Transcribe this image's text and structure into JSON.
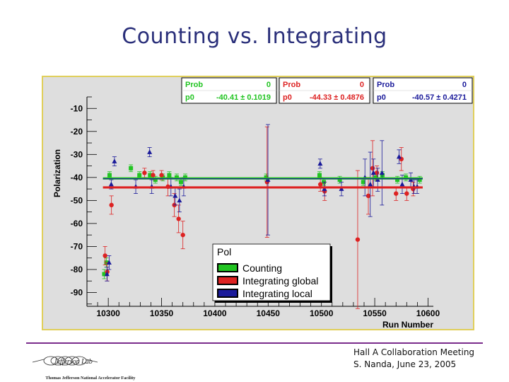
{
  "slide": {
    "title": "Counting vs. Integrating"
  },
  "footer": {
    "line1": "Hall A Collaboration Meeting",
    "line2": "S. Nanda, June 23, 2005",
    "logo_text": "Thomas Jefferson National Accelerator Facility",
    "logo_script": "Jefferson Lab"
  },
  "stat_boxes": [
    {
      "color": "#22c422",
      "r1_label": "Prob",
      "r1_value": "0",
      "r2_label": "p0",
      "r2_value": "-40.41 ± 0.1019"
    },
    {
      "color": "#dd2222",
      "r1_label": "Prob",
      "r1_value": "0",
      "r2_label": "p0",
      "r2_value": "-44.33 ± 0.4876"
    },
    {
      "color": "#1a1a9a",
      "r1_label": "Prob",
      "r1_value": "0",
      "r2_label": "p0",
      "r2_value": "-40.57 ± 0.4271"
    }
  ],
  "chart_data": {
    "type": "scatter",
    "title": "",
    "xlabel": "Run Number",
    "ylabel": "Polarization",
    "xlim": [
      10280,
      10605
    ],
    "ylim": [
      -96,
      -5
    ],
    "x_ticks": [
      10300,
      10350,
      10400,
      10450,
      10500,
      10550,
      10600
    ],
    "y_ticks": [
      -10,
      -20,
      -30,
      -40,
      -50,
      -60,
      -70,
      -80,
      -90
    ],
    "legend": {
      "title": "Pol",
      "placement": "bottom-center",
      "entries": [
        "Counting",
        "Integrating global",
        "Integrating local"
      ]
    },
    "series": [
      {
        "name": "Counting",
        "color": "#22c422",
        "marker": "square",
        "fit": -40.41,
        "points": [
          {
            "x": 10297,
            "y": -82,
            "e": 2
          },
          {
            "x": 10299,
            "y": -77,
            "e": 2
          },
          {
            "x": 10302,
            "y": -39,
            "e": 1.5
          },
          {
            "x": 10322,
            "y": -36,
            "e": 1.5
          },
          {
            "x": 10330,
            "y": -39,
            "e": 1.5
          },
          {
            "x": 10340,
            "y": -39,
            "e": 1.5
          },
          {
            "x": 10345,
            "y": -41,
            "e": 1.5
          },
          {
            "x": 10352,
            "y": -40,
            "e": 1.5
          },
          {
            "x": 10358,
            "y": -39,
            "e": 1.5
          },
          {
            "x": 10365,
            "y": -40,
            "e": 1.5
          },
          {
            "x": 10369,
            "y": -42,
            "e": 1.5
          },
          {
            "x": 10373,
            "y": -40,
            "e": 1.5
          },
          {
            "x": 10449,
            "y": -40,
            "e": 1.5
          },
          {
            "x": 10499,
            "y": -39,
            "e": 1.5
          },
          {
            "x": 10503,
            "y": -42,
            "e": 1.5
          },
          {
            "x": 10518,
            "y": -41,
            "e": 1.5
          },
          {
            "x": 10540,
            "y": -42,
            "e": 1.5
          },
          {
            "x": 10552,
            "y": -40,
            "e": 1.5
          },
          {
            "x": 10558,
            "y": -39,
            "e": 1.5
          },
          {
            "x": 10572,
            "y": -41,
            "e": 1.5
          },
          {
            "x": 10580,
            "y": -40,
            "e": 1.5
          },
          {
            "x": 10593,
            "y": -41,
            "e": 1.5
          }
        ]
      },
      {
        "name": "Integrating global",
        "color": "#dd2222",
        "marker": "circle",
        "fit": -44.33,
        "points": [
          {
            "x": 10297,
            "y": -74,
            "e": 4
          },
          {
            "x": 10299,
            "y": -81,
            "e": 4
          },
          {
            "x": 10303,
            "y": -52,
            "e": 4
          },
          {
            "x": 10334,
            "y": -38,
            "e": 2
          },
          {
            "x": 10342,
            "y": -39,
            "e": 2
          },
          {
            "x": 10350,
            "y": -39,
            "e": 2
          },
          {
            "x": 10356,
            "y": -44,
            "e": 4
          },
          {
            "x": 10362,
            "y": -52,
            "e": 5
          },
          {
            "x": 10366,
            "y": -58,
            "e": 6
          },
          {
            "x": 10370,
            "y": -65,
            "e": 6
          },
          {
            "x": 10449,
            "y": -42,
            "e": 24
          },
          {
            "x": 10499,
            "y": -43,
            "e": 3
          },
          {
            "x": 10503,
            "y": -46,
            "e": 4
          },
          {
            "x": 10534,
            "y": -67,
            "e": 30
          },
          {
            "x": 10544,
            "y": -48,
            "e": 8
          },
          {
            "x": 10548,
            "y": -36,
            "e": 12
          },
          {
            "x": 10552,
            "y": -38,
            "e": 3
          },
          {
            "x": 10570,
            "y": -47,
            "e": 3
          },
          {
            "x": 10575,
            "y": -32,
            "e": 5
          },
          {
            "x": 10580,
            "y": -47,
            "e": 3
          },
          {
            "x": 10586,
            "y": -45,
            "e": 3
          }
        ]
      },
      {
        "name": "Integrating local",
        "color": "#1a1a9a",
        "marker": "triangle",
        "fit": -40.57,
        "points": [
          {
            "x": 10298,
            "y": -82,
            "e": 3
          },
          {
            "x": 10300,
            "y": -77,
            "e": 3
          },
          {
            "x": 10302,
            "y": -43,
            "e": 2
          },
          {
            "x": 10305,
            "y": -33,
            "e": 2
          },
          {
            "x": 10325,
            "y": -44,
            "e": 3
          },
          {
            "x": 10338,
            "y": -29,
            "e": 2
          },
          {
            "x": 10340,
            "y": -44,
            "e": 3
          },
          {
            "x": 10358,
            "y": -44,
            "e": 4
          },
          {
            "x": 10362,
            "y": -48,
            "e": 4
          },
          {
            "x": 10366,
            "y": -50,
            "e": 5
          },
          {
            "x": 10370,
            "y": -44,
            "e": 4
          },
          {
            "x": 10449,
            "y": -41,
            "e": 24
          },
          {
            "x": 10498,
            "y": -34,
            "e": 2
          },
          {
            "x": 10502,
            "y": -45,
            "e": 3
          },
          {
            "x": 10518,
            "y": -45,
            "e": 3
          },
          {
            "x": 10540,
            "y": -40,
            "e": 8
          },
          {
            "x": 10545,
            "y": -43,
            "e": 14
          },
          {
            "x": 10548,
            "y": -38,
            "e": 6
          },
          {
            "x": 10552,
            "y": -41,
            "e": 5
          },
          {
            "x": 10556,
            "y": -38,
            "e": 14
          },
          {
            "x": 10572,
            "y": -31,
            "e": 3
          },
          {
            "x": 10575,
            "y": -43,
            "e": 4
          },
          {
            "x": 10583,
            "y": -41,
            "e": 3
          },
          {
            "x": 10586,
            "y": -44,
            "e": 3
          },
          {
            "x": 10589,
            "y": -44,
            "e": 3
          }
        ]
      }
    ]
  }
}
